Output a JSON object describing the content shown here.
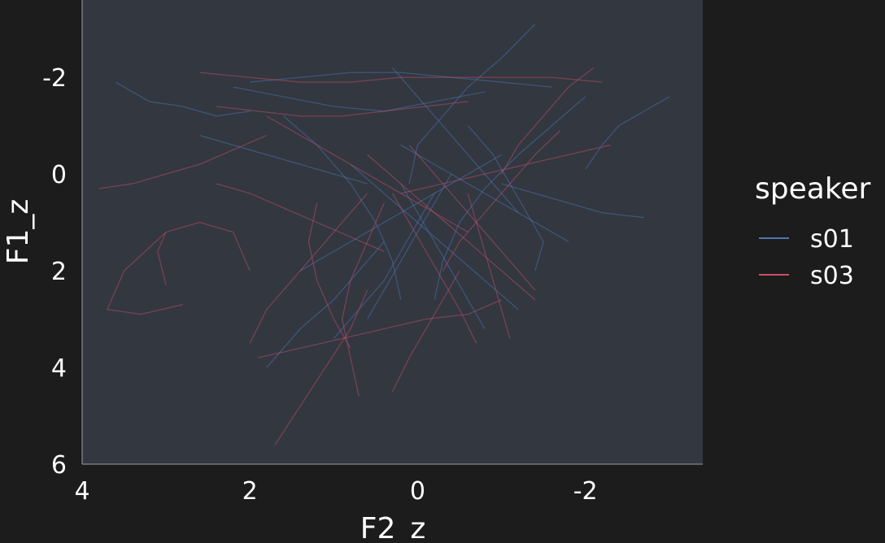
{
  "chart_data": {
    "type": "line",
    "xlabel": "F2_z",
    "ylabel": "F1_z",
    "xlim": [
      4,
      -3.4
    ],
    "ylim": [
      6,
      -3.6
    ],
    "x_reversed": true,
    "y_reversed": true,
    "x_ticks": [
      {
        "value": 4,
        "label": "4"
      },
      {
        "value": 2,
        "label": "2"
      },
      {
        "value": 0,
        "label": "0"
      },
      {
        "value": -2,
        "label": "-2"
      }
    ],
    "y_ticks": [
      {
        "value": -2,
        "label": "-2"
      },
      {
        "value": 0,
        "label": "0"
      },
      {
        "value": 2,
        "label": "2"
      },
      {
        "value": 4,
        "label": "4"
      },
      {
        "value": 6,
        "label": "6"
      }
    ],
    "grid": false,
    "legend": {
      "title": "speaker",
      "position": "right",
      "entries": [
        {
          "name": "s01",
          "color": "#4f76b3"
        },
        {
          "name": "s03",
          "color": "#c4506a"
        }
      ]
    },
    "series": [
      {
        "name": "s01",
        "color": "#4f76b3",
        "trajectories": [
          [
            [
              3.6,
              -1.9
            ],
            [
              3.2,
              -1.5
            ],
            [
              2.8,
              -1.4
            ],
            [
              2.4,
              -1.2
            ],
            [
              2.0,
              -1.3
            ]
          ],
          [
            [
              2.2,
              -1.8
            ],
            [
              1.6,
              -1.6
            ],
            [
              1.0,
              -1.4
            ],
            [
              0.4,
              -1.3
            ],
            [
              -0.2,
              -1.5
            ],
            [
              -0.8,
              -1.7
            ]
          ],
          [
            [
              1.6,
              -1.2
            ],
            [
              1.2,
              -0.6
            ],
            [
              0.8,
              0.2
            ],
            [
              0.5,
              1.0
            ],
            [
              0.3,
              1.8
            ],
            [
              0.2,
              2.6
            ]
          ],
          [
            [
              -1.4,
              -3.1
            ],
            [
              -1.0,
              -2.4
            ],
            [
              -0.6,
              -1.8
            ],
            [
              -0.3,
              -1.2
            ],
            [
              0.0,
              -0.6
            ],
            [
              0.1,
              0.2
            ]
          ],
          [
            [
              -2.0,
              -1.6
            ],
            [
              -1.6,
              -1.0
            ],
            [
              -1.2,
              -0.4
            ],
            [
              -0.8,
              0.3
            ],
            [
              -0.5,
              1.0
            ],
            [
              -0.3,
              1.8
            ],
            [
              -0.2,
              2.6
            ]
          ],
          [
            [
              -3.0,
              -1.6
            ],
            [
              -2.7,
              -1.3
            ],
            [
              -2.4,
              -1.0
            ],
            [
              -2.2,
              -0.6
            ],
            [
              -2.0,
              -0.1
            ]
          ],
          [
            [
              0.8,
              -0.2
            ],
            [
              0.4,
              0.4
            ],
            [
              0.0,
              1.0
            ],
            [
              -0.4,
              1.6
            ],
            [
              -0.8,
              2.2
            ],
            [
              -1.2,
              2.8
            ]
          ],
          [
            [
              1.0,
              3.4
            ],
            [
              0.7,
              2.8
            ],
            [
              0.4,
              2.2
            ],
            [
              0.2,
              1.6
            ],
            [
              0.0,
              1.0
            ],
            [
              -0.2,
              0.4
            ]
          ],
          [
            [
              -0.6,
              -1.0
            ],
            [
              -0.9,
              -0.4
            ],
            [
              -1.1,
              0.2
            ],
            [
              -1.3,
              0.8
            ],
            [
              -1.5,
              1.4
            ],
            [
              -1.4,
              2.0
            ]
          ],
          [
            [
              2.6,
              -0.8
            ],
            [
              2.2,
              -0.6
            ],
            [
              1.8,
              -0.4
            ],
            [
              1.4,
              -0.2
            ],
            [
              1.0,
              0.0
            ],
            [
              0.6,
              0.2
            ]
          ],
          [
            [
              0.3,
              -2.2
            ],
            [
              0.0,
              -1.6
            ],
            [
              -0.3,
              -1.0
            ],
            [
              -0.6,
              -0.4
            ],
            [
              -0.9,
              0.2
            ],
            [
              -1.2,
              0.8
            ]
          ],
          [
            [
              1.4,
              2.0
            ],
            [
              1.0,
              1.6
            ],
            [
              0.6,
              1.2
            ],
            [
              0.2,
              0.8
            ],
            [
              -0.2,
              0.4
            ],
            [
              -0.6,
              0.0
            ],
            [
              -1.0,
              -0.4
            ]
          ],
          [
            [
              -1.8,
              1.4
            ],
            [
              -1.4,
              1.0
            ],
            [
              -1.0,
              0.6
            ],
            [
              -0.6,
              0.2
            ],
            [
              -0.2,
              -0.2
            ],
            [
              0.2,
              -0.6
            ]
          ],
          [
            [
              0.6,
              3.0
            ],
            [
              0.4,
              2.4
            ],
            [
              0.2,
              1.8
            ],
            [
              0.0,
              1.2
            ],
            [
              -0.2,
              0.6
            ],
            [
              -0.4,
              0.0
            ]
          ],
          [
            [
              -2.7,
              0.9
            ],
            [
              -2.2,
              0.8
            ],
            [
              -1.8,
              0.6
            ],
            [
              -1.4,
              0.4
            ],
            [
              -1.0,
              0.2
            ]
          ],
          [
            [
              2.0,
              -1.9
            ],
            [
              1.4,
              -2.0
            ],
            [
              0.8,
              -2.1
            ],
            [
              0.2,
              -2.1
            ],
            [
              -0.4,
              -2.0
            ],
            [
              -1.0,
              -1.9
            ],
            [
              -1.6,
              -1.8
            ]
          ],
          [
            [
              -0.8,
              3.2
            ],
            [
              -0.6,
              2.6
            ],
            [
              -0.4,
              2.0
            ],
            [
              -0.2,
              1.4
            ],
            [
              0.0,
              0.8
            ],
            [
              0.2,
              0.2
            ]
          ],
          [
            [
              1.8,
              4.0
            ],
            [
              1.4,
              3.2
            ],
            [
              1.0,
              2.6
            ],
            [
              0.7,
              2.0
            ],
            [
              0.4,
              1.4
            ]
          ]
        ]
      },
      {
        "name": "s03",
        "color": "#c4506a",
        "trajectories": [
          [
            [
              3.8,
              0.3
            ],
            [
              3.4,
              0.2
            ],
            [
              3.0,
              0.0
            ],
            [
              2.6,
              -0.2
            ],
            [
              2.2,
              -0.5
            ],
            [
              1.8,
              -0.8
            ]
          ],
          [
            [
              3.0,
              2.3
            ],
            [
              3.1,
              1.6
            ],
            [
              3.0,
              1.2
            ],
            [
              2.6,
              1.0
            ],
            [
              2.2,
              1.2
            ],
            [
              2.0,
              2.0
            ]
          ],
          [
            [
              2.6,
              -2.1
            ],
            [
              2.0,
              -2.0
            ],
            [
              1.4,
              -1.9
            ],
            [
              0.8,
              -1.9
            ],
            [
              0.2,
              -2.0
            ],
            [
              -0.4,
              -2.0
            ],
            [
              -1.0,
              -2.0
            ],
            [
              -1.6,
              -2.0
            ],
            [
              -2.2,
              -1.9
            ]
          ],
          [
            [
              0.7,
              4.6
            ],
            [
              0.8,
              3.8
            ],
            [
              0.9,
              3.0
            ],
            [
              0.8,
              2.2
            ],
            [
              0.6,
              1.4
            ],
            [
              0.4,
              0.6
            ]
          ],
          [
            [
              1.7,
              5.6
            ],
            [
              1.4,
              4.8
            ],
            [
              1.1,
              4.0
            ],
            [
              0.8,
              3.2
            ],
            [
              0.6,
              2.4
            ]
          ],
          [
            [
              -0.7,
              3.5
            ],
            [
              -0.5,
              2.8
            ],
            [
              -0.3,
              2.2
            ],
            [
              -0.1,
              1.6
            ],
            [
              0.1,
              1.0
            ],
            [
              0.3,
              0.4
            ]
          ],
          [
            [
              2.0,
              3.5
            ],
            [
              1.8,
              2.8
            ],
            [
              1.5,
              2.2
            ],
            [
              1.2,
              1.6
            ],
            [
              0.9,
              1.0
            ],
            [
              0.6,
              0.4
            ]
          ],
          [
            [
              1.8,
              -1.2
            ],
            [
              1.4,
              -0.8
            ],
            [
              1.0,
              -0.4
            ],
            [
              0.6,
              0.0
            ],
            [
              0.2,
              0.4
            ],
            [
              -0.2,
              0.8
            ],
            [
              -0.6,
              1.2
            ]
          ],
          [
            [
              -1.7,
              -0.9
            ],
            [
              -1.4,
              -0.4
            ],
            [
              -1.1,
              0.2
            ],
            [
              -0.8,
              0.8
            ],
            [
              -0.5,
              1.4
            ],
            [
              -0.3,
              2.0
            ]
          ],
          [
            [
              2.4,
              -1.4
            ],
            [
              1.9,
              -1.3
            ],
            [
              1.4,
              -1.2
            ],
            [
              0.9,
              -1.2
            ],
            [
              0.4,
              -1.3
            ],
            [
              -0.1,
              -1.4
            ],
            [
              -0.6,
              -1.5
            ]
          ],
          [
            [
              -1.4,
              2.4
            ],
            [
              -1.1,
              1.8
            ],
            [
              -0.8,
              1.2
            ],
            [
              -0.5,
              0.6
            ],
            [
              -0.2,
              0.0
            ],
            [
              0.1,
              -0.6
            ]
          ],
          [
            [
              3.0,
              1.2
            ],
            [
              3.5,
              2.0
            ],
            [
              3.7,
              2.8
            ],
            [
              3.3,
              2.9
            ],
            [
              2.8,
              2.7
            ]
          ],
          [
            [
              2.4,
              0.2
            ],
            [
              2.0,
              0.4
            ],
            [
              1.6,
              0.7
            ],
            [
              1.2,
              1.0
            ],
            [
              0.8,
              1.3
            ],
            [
              0.4,
              1.6
            ]
          ],
          [
            [
              1.9,
              3.8
            ],
            [
              1.4,
              3.6
            ],
            [
              0.9,
              3.4
            ],
            [
              0.4,
              3.2
            ],
            [
              -0.1,
              3.0
            ],
            [
              -0.6,
              2.9
            ],
            [
              -1.0,
              2.6
            ]
          ],
          [
            [
              0.3,
              4.5
            ],
            [
              0.1,
              3.8
            ],
            [
              -0.1,
              3.2
            ],
            [
              -0.3,
              2.6
            ],
            [
              -0.5,
              2.0
            ]
          ],
          [
            [
              -2.1,
              -2.2
            ],
            [
              -1.8,
              -1.8
            ],
            [
              -1.5,
              -1.2
            ],
            [
              -1.2,
              -0.6
            ],
            [
              -1.0,
              0.0
            ]
          ],
          [
            [
              0.6,
              -0.4
            ],
            [
              0.2,
              0.2
            ],
            [
              -0.2,
              0.8
            ],
            [
              -0.6,
              1.4
            ],
            [
              -1.0,
              2.0
            ],
            [
              -1.4,
              2.6
            ]
          ],
          [
            [
              -2.3,
              -0.6
            ],
            [
              -1.8,
              -0.4
            ],
            [
              -1.3,
              -0.2
            ],
            [
              -0.8,
              0.0
            ],
            [
              -0.3,
              0.2
            ],
            [
              0.2,
              0.4
            ]
          ],
          [
            [
              1.2,
              0.6
            ],
            [
              1.3,
              1.4
            ],
            [
              1.2,
              2.2
            ],
            [
              1.0,
              3.0
            ],
            [
              0.8,
              3.6
            ]
          ],
          [
            [
              -1.1,
              3.4
            ],
            [
              -1.0,
              2.8
            ],
            [
              -0.9,
              2.2
            ],
            [
              -0.8,
              1.6
            ],
            [
              -0.7,
              1.0
            ],
            [
              -0.6,
              0.4
            ]
          ]
        ]
      }
    ]
  }
}
